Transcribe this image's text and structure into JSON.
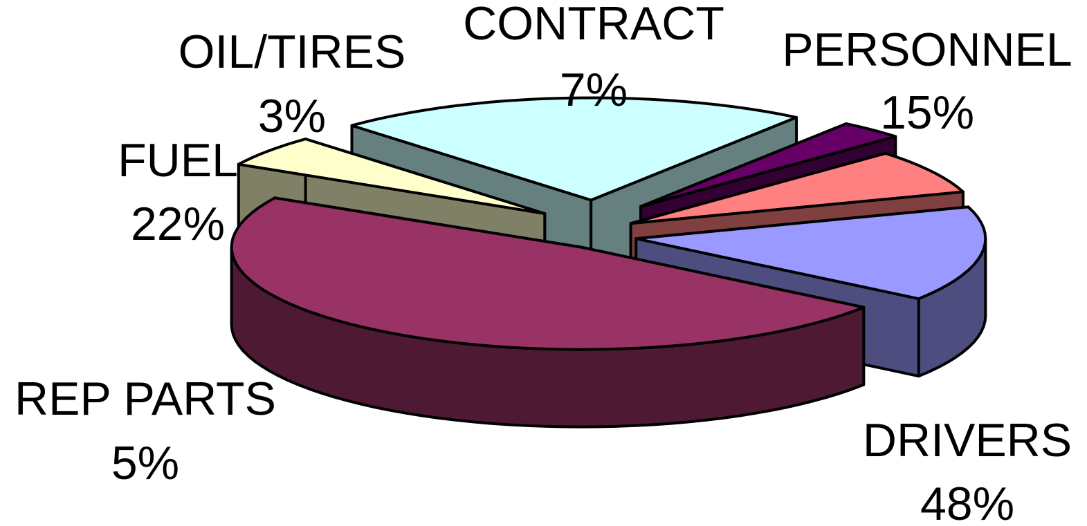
{
  "chart_data": {
    "type": "pie",
    "style": "3d-exploded",
    "title": "",
    "slices": [
      {
        "label": "PERSONNEL",
        "value": 15,
        "value_label": "15%",
        "top_color": "#9999FF",
        "side_color": "#4D4D80"
      },
      {
        "label": "DRIVERS",
        "value": 48,
        "value_label": "48%",
        "top_color": "#993366",
        "side_color": "#4D1933"
      },
      {
        "label": "REP PARTS",
        "value": 5,
        "value_label": "5%",
        "top_color": "#FFFFCC",
        "side_color": "#808066"
      },
      {
        "label": "FUEL",
        "value": 22,
        "value_label": "22%",
        "top_color": "#CCFFFF",
        "side_color": "#668080"
      },
      {
        "label": "OIL/TIRES",
        "value": 3,
        "value_label": "3%",
        "top_color": "#660066",
        "side_color": "#330033"
      },
      {
        "label": "CONTRACT",
        "value": 7,
        "value_label": "7%",
        "top_color": "#FF8080",
        "side_color": "#804040"
      }
    ]
  }
}
